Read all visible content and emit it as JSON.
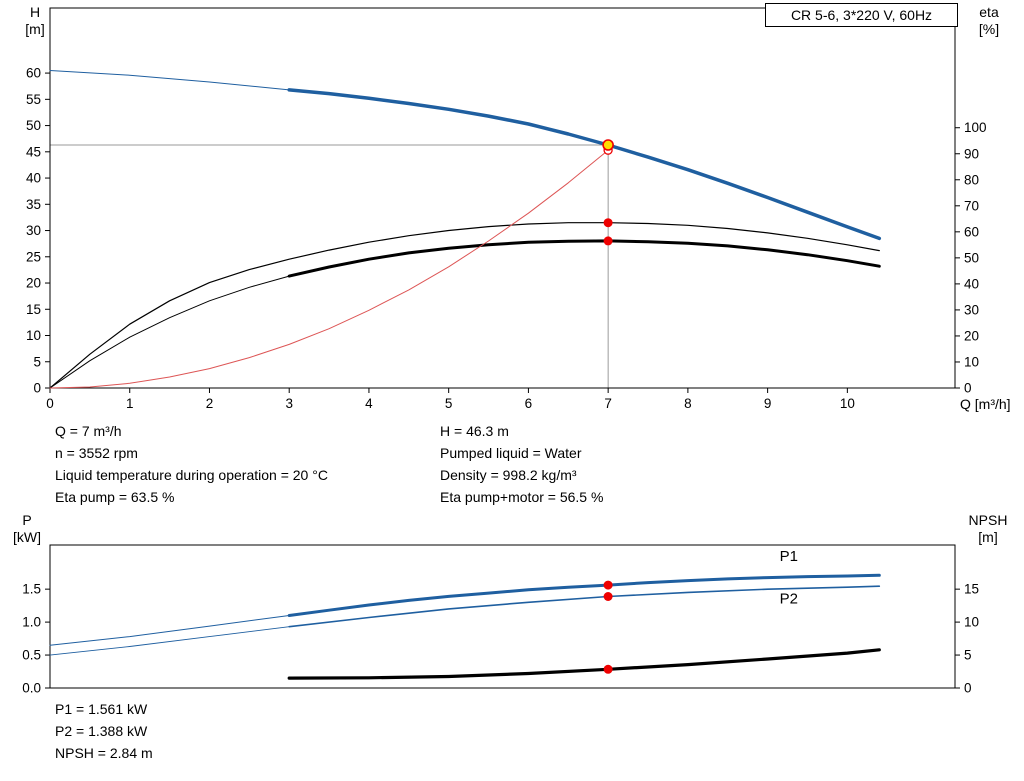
{
  "header": {
    "title": "CR 5-6, 3*220 V, 60Hz"
  },
  "colors": {
    "blue": "#1f5fa0",
    "black": "#000000",
    "red": "#dd5555",
    "red_dot": "#ee0000",
    "yellow": "#ffdd00",
    "gray": "#9a9a9a"
  },
  "axis_labels": {
    "h": {
      "name": "H",
      "unit": "[m]"
    },
    "eta": {
      "name": "eta",
      "unit": "[%]"
    },
    "p": {
      "name": "P",
      "unit": "[kW]"
    },
    "npsh": {
      "name": "NPSH",
      "unit": "[m]"
    },
    "q": "Q [m³/h]"
  },
  "annotations": {
    "mid_left": [
      "Q = 7 m³/h",
      "n = 3552 rpm",
      "Liquid temperature during operation = 20 °C",
      "Eta pump = 63.5 %"
    ],
    "mid_right": [
      "H = 46.3 m",
      "Pumped liquid = Water",
      "Density = 998.2 kg/m³",
      "Eta pump+motor = 56.5 %"
    ],
    "bottom": [
      "P1 = 1.561 kW",
      "P2 = 1.388 kW",
      "NPSH = 2.84 m"
    ]
  },
  "chart_data": [
    {
      "id": "qh-eta-chart",
      "type": "line",
      "title": "CR 5-6, 3*220 V, 60Hz",
      "x": {
        "label": "Q [m³/h]",
        "min": 0,
        "max": 11.35,
        "ticks": [
          [
            0,
            "0"
          ],
          [
            1,
            "1"
          ],
          [
            2,
            "2"
          ],
          [
            3,
            "3"
          ],
          [
            4,
            "4"
          ],
          [
            5,
            "5"
          ],
          [
            6,
            "6"
          ],
          [
            7,
            "7"
          ],
          [
            8,
            "8"
          ],
          [
            9,
            "9"
          ],
          [
            10,
            "10"
          ]
        ]
      },
      "y_left": {
        "label": "H [m]",
        "min": 0,
        "max": 72.4,
        "ticks": [
          [
            0,
            "0"
          ],
          [
            5,
            "5"
          ],
          [
            10,
            "10"
          ],
          [
            15,
            "15"
          ],
          [
            20,
            "20"
          ],
          [
            25,
            "25"
          ],
          [
            30,
            "30"
          ],
          [
            35,
            "35"
          ],
          [
            40,
            "40"
          ],
          [
            45,
            "45"
          ],
          [
            50,
            "50"
          ],
          [
            55,
            "55"
          ],
          [
            60,
            "60"
          ]
        ]
      },
      "y_right": {
        "label": "eta [%]",
        "min": 0,
        "max": 146,
        "ticks": [
          [
            0,
            "0"
          ],
          [
            10,
            "10"
          ],
          [
            20,
            "20"
          ],
          [
            30,
            "30"
          ],
          [
            40,
            "40"
          ],
          [
            50,
            "50"
          ],
          [
            60,
            "60"
          ],
          [
            70,
            "70"
          ],
          [
            80,
            "80"
          ],
          [
            90,
            "90"
          ],
          [
            100,
            "100"
          ]
        ]
      },
      "crosshair": {
        "q": 7,
        "h": 46.3
      },
      "series": [
        {
          "name": "H curve low flow extension",
          "axis": "left",
          "color": "blue",
          "width": 1,
          "points": [
            [
              0,
              60.5
            ],
            [
              1,
              59.6
            ],
            [
              2,
              58.3
            ],
            [
              3,
              56.8
            ]
          ]
        },
        {
          "name": "H curve",
          "axis": "left",
          "color": "blue",
          "width": 3.5,
          "points": [
            [
              3,
              56.8
            ],
            [
              3.5,
              56.1
            ],
            [
              4,
              55.2
            ],
            [
              4.5,
              54.2
            ],
            [
              5,
              53.1
            ],
            [
              5.5,
              51.8
            ],
            [
              6,
              50.3
            ],
            [
              6.5,
              48.4
            ],
            [
              7,
              46.3
            ],
            [
              7.5,
              44.0
            ],
            [
              8,
              41.6
            ],
            [
              8.5,
              39.0
            ],
            [
              9,
              36.3
            ],
            [
              9.5,
              33.5
            ],
            [
              10,
              30.7
            ],
            [
              10.4,
              28.5
            ]
          ]
        },
        {
          "name": "Eta pump curve",
          "axis": "right",
          "color": "black",
          "width": 1.2,
          "points": [
            [
              0,
              0
            ],
            [
              0.5,
              13
            ],
            [
              1,
              24.5
            ],
            [
              1.5,
              33.5
            ],
            [
              2,
              40.5
            ],
            [
              2.5,
              45.5
            ],
            [
              3,
              49.5
            ],
            [
              3.5,
              53
            ],
            [
              4,
              56
            ],
            [
              4.5,
              58.5
            ],
            [
              5,
              60.5
            ],
            [
              5.5,
              62
            ],
            [
              6,
              63
            ],
            [
              6.5,
              63.5
            ],
            [
              7,
              63.5
            ],
            [
              7.5,
              63.2
            ],
            [
              8,
              62.5
            ],
            [
              8.5,
              61.3
            ],
            [
              9,
              59.6
            ],
            [
              9.5,
              57.5
            ],
            [
              10,
              55
            ],
            [
              10.4,
              52.8
            ]
          ]
        },
        {
          "name": "Eta pump motor low flow",
          "axis": "right",
          "color": "black",
          "width": 1,
          "points": [
            [
              0,
              0
            ],
            [
              0.5,
              10.5
            ],
            [
              1,
              19.5
            ],
            [
              1.5,
              27
            ],
            [
              2,
              33.5
            ],
            [
              2.5,
              38.7
            ],
            [
              3,
              43
            ]
          ]
        },
        {
          "name": "Eta pump motor curve",
          "axis": "right",
          "color": "black",
          "width": 3,
          "points": [
            [
              3,
              43
            ],
            [
              3.5,
              46.5
            ],
            [
              4,
              49.5
            ],
            [
              4.5,
              51.9
            ],
            [
              5,
              53.7
            ],
            [
              5.5,
              55
            ],
            [
              6,
              56
            ],
            [
              6.5,
              56.4
            ],
            [
              7,
              56.5
            ],
            [
              7.5,
              56.2
            ],
            [
              8,
              55.6
            ],
            [
              8.5,
              54.6
            ],
            [
              9,
              53.1
            ],
            [
              9.5,
              51.2
            ],
            [
              10,
              48.9
            ],
            [
              10.4,
              46.8
            ]
          ]
        },
        {
          "name": "System curve to duty point",
          "axis": "left",
          "color": "red",
          "width": 1,
          "points": [
            [
              0,
              0
            ],
            [
              0.5,
              0.2
            ],
            [
              1,
              0.9
            ],
            [
              1.5,
              2.1
            ],
            [
              2,
              3.7
            ],
            [
              2.5,
              5.8
            ],
            [
              3,
              8.3
            ],
            [
              3.5,
              11.3
            ],
            [
              4,
              14.8
            ],
            [
              4.5,
              18.7
            ],
            [
              5,
              23.1
            ],
            [
              5.5,
              28.0
            ],
            [
              6,
              33.3
            ],
            [
              6.5,
              39.1
            ],
            [
              7,
              45.3
            ]
          ]
        }
      ],
      "markers": [
        {
          "name": "system-curve-end-marker",
          "kind": "open",
          "axis": "left",
          "q": 7,
          "v": 45.3,
          "r": 4
        },
        {
          "name": "duty-point-marker",
          "kind": "duty",
          "axis": "left",
          "q": 7,
          "v": 46.3,
          "r": 5
        },
        {
          "name": "eta-pump-point",
          "kind": "dot",
          "axis": "right",
          "q": 7,
          "v": 63.5,
          "r": 4.5
        },
        {
          "name": "eta-pump-motor-point",
          "kind": "dot",
          "axis": "right",
          "q": 7,
          "v": 56.5,
          "r": 4.5
        }
      ]
    },
    {
      "id": "power-npsh-chart",
      "type": "line",
      "x": {
        "label": "Q [m³/h]",
        "min": 0,
        "max": 11.35,
        "ticks": []
      },
      "y_left": {
        "label": "P [kW]",
        "min": 0,
        "max": 2.17,
        "ticks": [
          [
            0,
            "0.0"
          ],
          [
            0.5,
            "0.5"
          ],
          [
            1,
            "1.0"
          ],
          [
            1.5,
            "1.5"
          ]
        ]
      },
      "y_right": {
        "label": "NPSH [m]",
        "min": 0,
        "max": 21.7,
        "ticks": [
          [
            0,
            "0"
          ],
          [
            5,
            "5"
          ],
          [
            10,
            "10"
          ],
          [
            15,
            "15"
          ]
        ]
      },
      "series": [
        {
          "name": "P1 low flow",
          "axis": "left",
          "color": "blue",
          "width": 1,
          "points": [
            [
              0,
              0.65
            ],
            [
              1,
              0.78
            ],
            [
              2,
              0.94
            ],
            [
              3,
              1.1
            ]
          ]
        },
        {
          "name": "P1 curve",
          "axis": "left",
          "color": "blue",
          "width": 3,
          "points": [
            [
              3,
              1.1
            ],
            [
              3.5,
              1.18
            ],
            [
              4,
              1.26
            ],
            [
              4.5,
              1.33
            ],
            [
              5,
              1.39
            ],
            [
              5.5,
              1.44
            ],
            [
              6,
              1.49
            ],
            [
              6.5,
              1.53
            ],
            [
              7,
              1.561
            ],
            [
              7.5,
              1.6
            ],
            [
              8,
              1.63
            ],
            [
              8.5,
              1.655
            ],
            [
              9,
              1.675
            ],
            [
              9.5,
              1.69
            ],
            [
              10,
              1.7
            ],
            [
              10.4,
              1.71
            ]
          ]
        },
        {
          "name": "P2 low flow",
          "axis": "left",
          "color": "blue",
          "width": 0.9,
          "points": [
            [
              0,
              0.5
            ],
            [
              1,
              0.63
            ],
            [
              2,
              0.78
            ],
            [
              3,
              0.93
            ]
          ]
        },
        {
          "name": "P2 curve",
          "axis": "left",
          "color": "blue",
          "width": 1.6,
          "points": [
            [
              3,
              0.93
            ],
            [
              4,
              1.07
            ],
            [
              5,
              1.2
            ],
            [
              6,
              1.3
            ],
            [
              7,
              1.388
            ],
            [
              8,
              1.45
            ],
            [
              9,
              1.5
            ],
            [
              10,
              1.53
            ],
            [
              10.4,
              1.545
            ]
          ]
        },
        {
          "name": "NPSH curve",
          "axis": "right",
          "color": "black",
          "width": 3.2,
          "points": [
            [
              3,
              1.5
            ],
            [
              4,
              1.55
            ],
            [
              5,
              1.75
            ],
            [
              6,
              2.2
            ],
            [
              7,
              2.84
            ],
            [
              8,
              3.55
            ],
            [
              9,
              4.4
            ],
            [
              10,
              5.3
            ],
            [
              10.4,
              5.8
            ]
          ]
        }
      ],
      "markers": [
        {
          "name": "p1-point",
          "kind": "dot",
          "axis": "left",
          "q": 7,
          "v": 1.561,
          "r": 4.5
        },
        {
          "name": "p2-point",
          "kind": "dot",
          "axis": "left",
          "q": 7,
          "v": 1.388,
          "r": 4.5
        },
        {
          "name": "npsh-point",
          "kind": "dot",
          "axis": "right",
          "q": 7,
          "v": 2.84,
          "r": 4.5
        }
      ],
      "curve_labels": [
        {
          "text": "P1",
          "axis": "left",
          "q": 9.15,
          "v": 1.93
        },
        {
          "text": "P2",
          "axis": "left",
          "q": 9.15,
          "v": 1.28
        }
      ]
    }
  ]
}
